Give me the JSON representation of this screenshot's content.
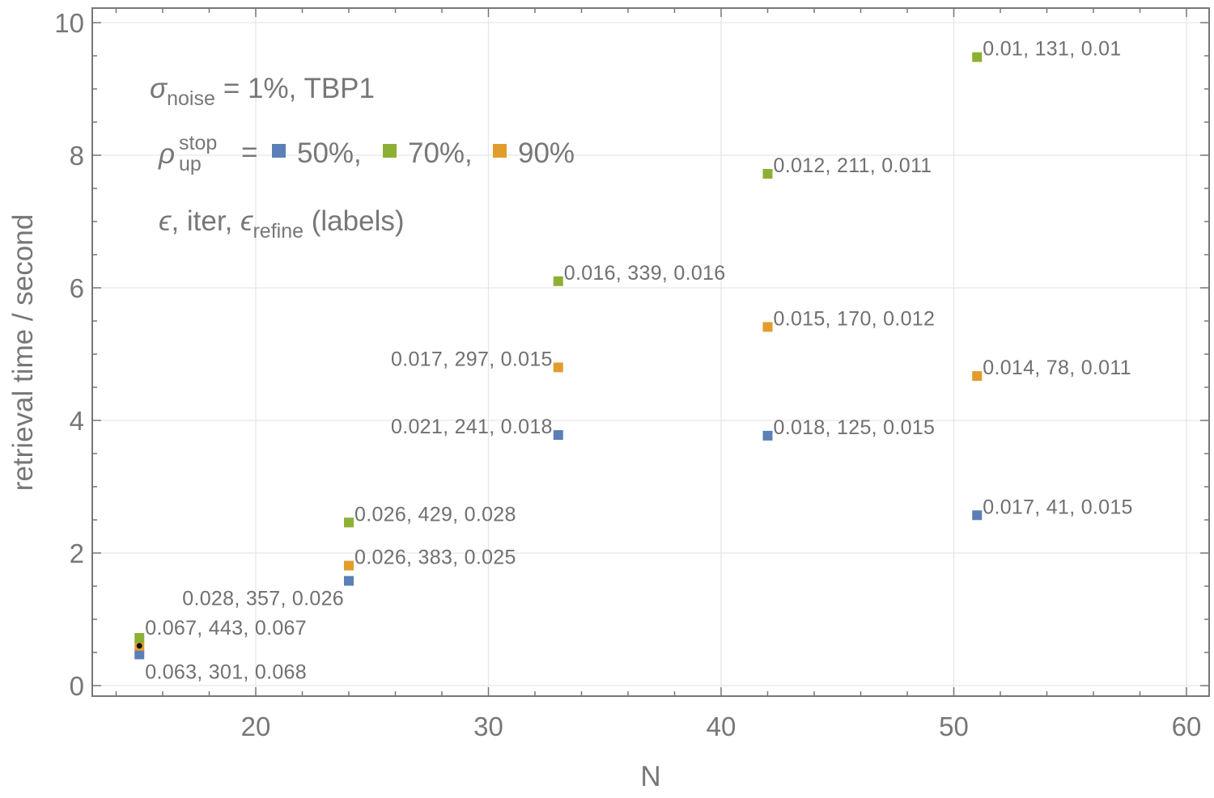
{
  "chart_data": {
    "type": "scatter",
    "title": "",
    "xlabel": "N",
    "ylabel": "retrieval time / second",
    "xlim": [
      13,
      61
    ],
    "ylim": [
      -0.2,
      10.2
    ],
    "x_ticks": [
      20,
      30,
      40,
      50,
      60
    ],
    "y_ticks": [
      0,
      2,
      4,
      6,
      8,
      10
    ],
    "grid": true,
    "legend": {
      "position": "top-left",
      "line1": {
        "sigma": "σ",
        "sigma_sub": "noise",
        "text": "= 1%, TBP1"
      },
      "line2": {
        "rho": "ρ",
        "rho_sup": "stop",
        "rho_sub": "up",
        "eq": "=",
        "entries": [
          "50%,",
          "70%,",
          "90%"
        ]
      },
      "line3": {
        "eps": "ϵ",
        "mid": ", iter, ",
        "eps2": "ϵ",
        "eps2_sub": "refine",
        "tail": " (labels)"
      }
    },
    "series": [
      {
        "name": "50%",
        "color": "#5b7fb6",
        "points": [
          {
            "x": 15,
            "y": 0.47,
            "label": "0.063, 301, 0.068"
          },
          {
            "x": 24,
            "y": 1.58,
            "label": "0.028, 357, 0.026"
          },
          {
            "x": 33,
            "y": 3.78,
            "label": "0.021, 241, 0.018"
          },
          {
            "x": 42,
            "y": 3.77,
            "label": "0.018, 125, 0.015"
          },
          {
            "x": 51,
            "y": 2.57,
            "label": "0.017, 41, 0.015"
          }
        ]
      },
      {
        "name": "70%",
        "color": "#8db034",
        "points": [
          {
            "x": 15,
            "y": 0.72,
            "label": "0.067, 443, 0.067"
          },
          {
            "x": 24,
            "y": 2.46,
            "label": "0.026, 429, 0.028"
          },
          {
            "x": 33,
            "y": 6.1,
            "label": "0.016, 339, 0.016"
          },
          {
            "x": 42,
            "y": 7.72,
            "label": "0.012, 211, 0.011"
          },
          {
            "x": 51,
            "y": 9.48,
            "label": "0.01, 131, 0.01"
          }
        ]
      },
      {
        "name": "90%",
        "color": "#e29c2b",
        "points": [
          {
            "x": 15,
            "y": 0.6,
            "label": ""
          },
          {
            "x": 24,
            "y": 1.81,
            "label": "0.026, 383, 0.025"
          },
          {
            "x": 33,
            "y": 4.8,
            "label": "0.017, 297, 0.015"
          },
          {
            "x": 42,
            "y": 5.41,
            "label": "0.015, 170, 0.012"
          },
          {
            "x": 51,
            "y": 4.67,
            "label": "0.014, 78, 0.011"
          }
        ]
      }
    ]
  }
}
